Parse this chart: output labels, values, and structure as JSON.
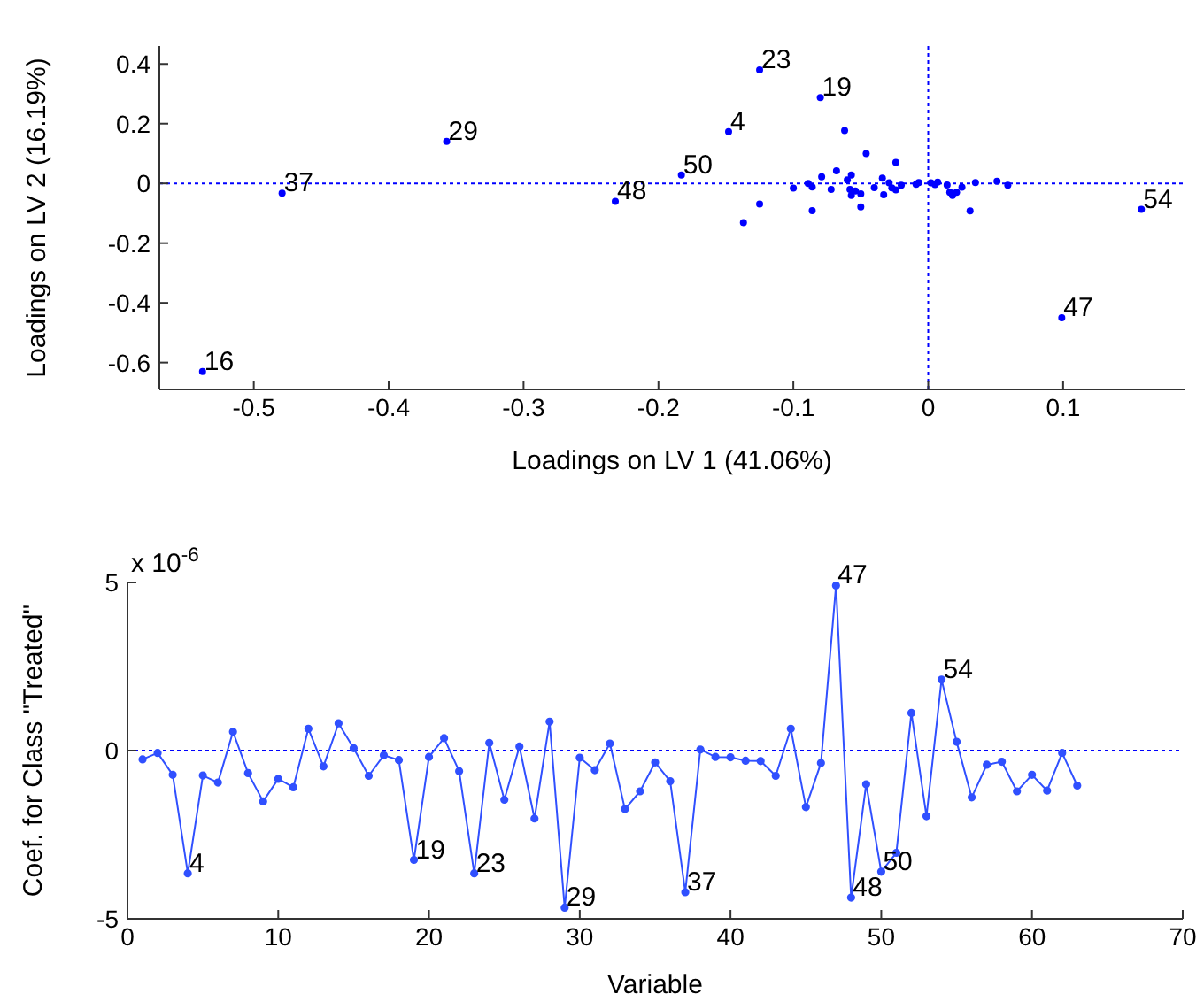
{
  "chart_data": [
    {
      "type": "scatter",
      "xlabel": "Loadings on LV 1 (41.06%)",
      "ylabel": "Loadings on LV 2 (16.19%)",
      "xlim": [
        -0.57,
        0.19
      ],
      "ylim": [
        -0.69,
        0.46
      ],
      "xticks": [
        -0.5,
        -0.4,
        -0.3,
        -0.2,
        -0.1,
        0,
        0.1
      ],
      "yticks": [
        -0.6,
        -0.4,
        -0.2,
        0,
        0.2,
        0.4
      ],
      "grid": false,
      "legend": false,
      "marker": "circle",
      "series": [
        {
          "color": "#0000ff",
          "x": [
            -0.538,
            -0.479,
            -0.357,
            -0.232,
            -0.183,
            -0.148,
            -0.125,
            -0.08,
            0.158,
            0.099,
            -0.125,
            -0.137,
            -0.1,
            -0.089,
            -0.086,
            -0.086,
            -0.079,
            -0.072,
            -0.068,
            -0.062,
            -0.06,
            -0.057,
            -0.058,
            -0.054,
            -0.057,
            -0.05,
            -0.05,
            -0.046,
            -0.04,
            -0.034,
            -0.033,
            -0.029,
            -0.027,
            -0.024,
            -0.024,
            -0.02,
            -0.009,
            -0.007,
            0.002,
            0.005,
            0.007,
            0.014,
            0.016,
            0.018,
            0.021,
            0.025,
            0.031,
            0.035,
            0.051,
            0.059
          ],
          "values": [
            -0.63,
            -0.033,
            0.141,
            -0.06,
            0.028,
            0.173,
            0.38,
            0.287,
            -0.087,
            -0.45,
            -0.069,
            -0.131,
            -0.016,
            0.0,
            -0.012,
            -0.091,
            0.022,
            -0.02,
            0.042,
            0.177,
            0.012,
            0.028,
            -0.02,
            -0.025,
            -0.04,
            -0.035,
            -0.079,
            0.1,
            -0.014,
            0.018,
            -0.038,
            0.002,
            -0.015,
            -0.022,
            0.07,
            -0.006,
            -0.003,
            0.003,
            0.002,
            -0.004,
            0.004,
            -0.005,
            -0.03,
            -0.04,
            -0.03,
            -0.013,
            -0.092,
            0.003,
            0.007,
            -0.006
          ]
        }
      ],
      "ref_lines": [
        {
          "axis": "x",
          "value": 0,
          "color": "#0000ff",
          "line_style": "dotted"
        },
        {
          "axis": "y",
          "value": 0,
          "color": "#0000ff",
          "line_style": "dotted"
        }
      ],
      "annotations": [
        {
          "text": "16",
          "x": -0.538,
          "y": -0.63
        },
        {
          "text": "37",
          "x": -0.479,
          "y": -0.033
        },
        {
          "text": "29",
          "x": -0.357,
          "y": 0.141
        },
        {
          "text": "48",
          "x": -0.232,
          "y": -0.06
        },
        {
          "text": "50",
          "x": -0.183,
          "y": 0.028
        },
        {
          "text": "4",
          "x": -0.148,
          "y": 0.173
        },
        {
          "text": "23",
          "x": -0.125,
          "y": 0.38
        },
        {
          "text": "19",
          "x": -0.08,
          "y": 0.287
        },
        {
          "text": "54",
          "x": 0.158,
          "y": -0.087
        },
        {
          "text": "47",
          "x": 0.099,
          "y": -0.45
        }
      ]
    },
    {
      "type": "line",
      "xlabel": "Variable",
      "ylabel": "Coef. for Class \"Treated\"",
      "xlim": [
        0,
        70
      ],
      "ylim": [
        -5,
        5
      ],
      "xticks": [
        0,
        10,
        20,
        30,
        40,
        50,
        60,
        70
      ],
      "yticks": [
        -5,
        0,
        5
      ],
      "grid": false,
      "legend": false,
      "marker": "circle",
      "line_style": "solid",
      "x": [
        1,
        2,
        3,
        4,
        5,
        6,
        7,
        8,
        9,
        10,
        11,
        12,
        13,
        14,
        15,
        16,
        17,
        18,
        19,
        20,
        21,
        22,
        23,
        24,
        25,
        26,
        27,
        28,
        29,
        30,
        31,
        32,
        33,
        34,
        35,
        36,
        37,
        38,
        39,
        40,
        41,
        42,
        43,
        44,
        45,
        46,
        47,
        48,
        49,
        50,
        51,
        52,
        53,
        54,
        55,
        56,
        57,
        58,
        59,
        60,
        61,
        62,
        63
      ],
      "series": [
        {
          "color": "#3050ff",
          "values": [
            -0.26,
            -0.07,
            -0.72,
            -3.65,
            -0.74,
            -0.95,
            0.56,
            -0.67,
            -1.51,
            -0.84,
            -1.09,
            0.65,
            -0.47,
            0.81,
            0.07,
            -0.75,
            -0.14,
            -0.28,
            -3.25,
            -0.19,
            0.37,
            -0.61,
            -3.65,
            0.23,
            -1.46,
            0.12,
            -2.02,
            0.86,
            -4.67,
            -0.21,
            -0.58,
            0.21,
            -1.74,
            -1.21,
            -0.35,
            -0.91,
            -4.21,
            0.03,
            -0.19,
            -0.2,
            -0.3,
            -0.31,
            -0.75,
            0.65,
            -1.68,
            -0.37,
            4.91,
            -4.37,
            -1.0,
            -3.6,
            -3.04,
            1.12,
            -1.95,
            2.11,
            0.26,
            -1.39,
            -0.42,
            -0.33,
            -1.21,
            -0.72,
            -1.19,
            -0.07,
            -1.04
          ]
        }
      ],
      "ref_lines": [
        {
          "axis": "y",
          "value": 0,
          "color": "#0000ff",
          "line_style": "dotted"
        }
      ],
      "annotations": [
        "x 10$^{-6}$",
        {
          "text": "4",
          "x": 4,
          "y": -3.65
        },
        {
          "text": "19",
          "x": 19,
          "y": -3.25
        },
        {
          "text": "23",
          "x": 23,
          "y": -3.65
        },
        {
          "text": "29",
          "x": 29,
          "y": -4.67
        },
        {
          "text": "37",
          "x": 37,
          "y": -4.21
        },
        {
          "text": "47",
          "x": 47,
          "y": 4.91
        },
        {
          "text": "48",
          "x": 48,
          "y": -4.37
        },
        {
          "text": "50",
          "x": 50,
          "y": -3.6
        },
        {
          "text": "54",
          "x": 54,
          "y": 2.11
        }
      ]
    }
  ]
}
